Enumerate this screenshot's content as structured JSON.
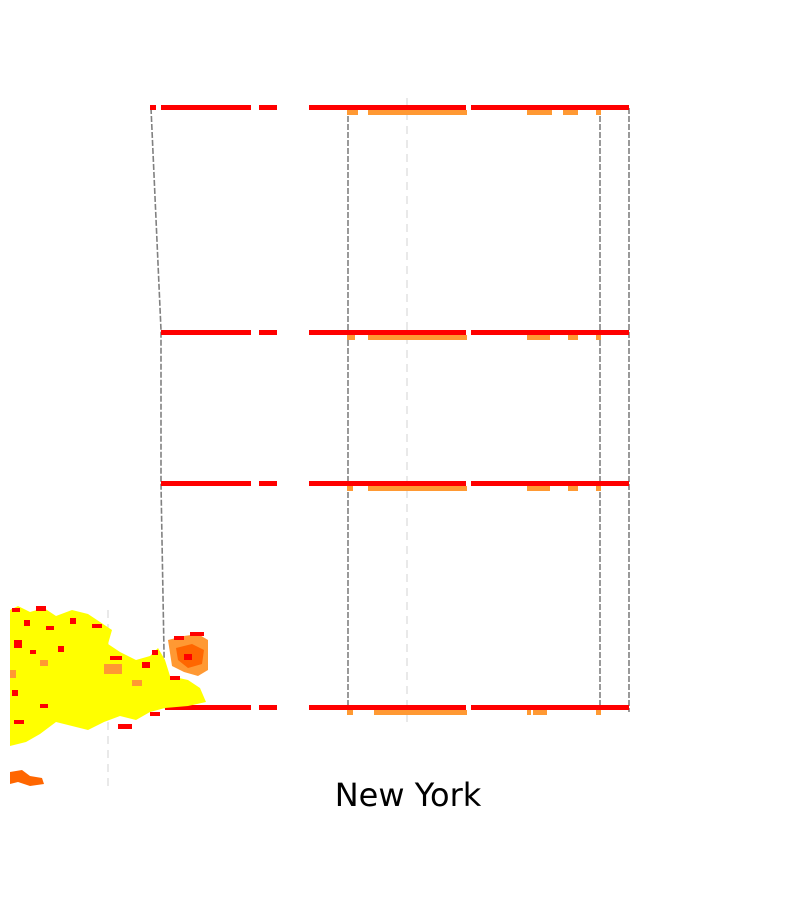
{
  "map": {
    "title": "New York",
    "colors": {
      "background": "#ffffff",
      "road_major": "#ff0000",
      "road_secondary": "#ff9933",
      "boundary": "#808080",
      "guide_line": "#d3d3d3",
      "urban_high": "#ffff00",
      "urban_mid": "#ff9933",
      "urban_low": "#ff0000",
      "urban_edge": "#ff6600"
    }
  }
}
